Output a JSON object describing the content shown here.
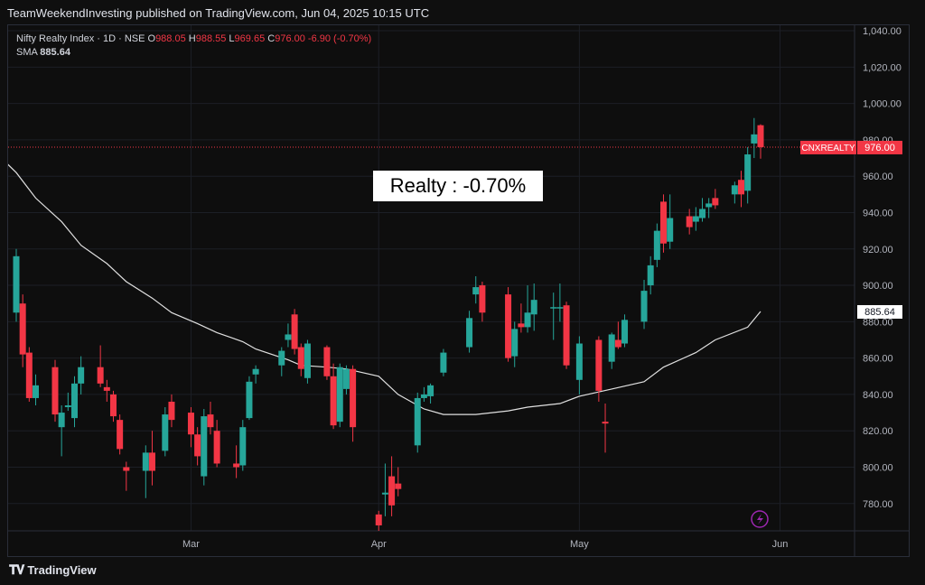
{
  "header": {
    "published": "TeamWeekendInvesting published on TradingView.com, Jun 04, 2025 10:15 UTC"
  },
  "legend": {
    "symbol": "Nifty Realty Index · 1D · NSE",
    "o_label": "O",
    "o": "988.05",
    "h_label": "H",
    "h": "988.55",
    "l_label": "L",
    "l": "969.65",
    "c_label": "C",
    "c": "976.00",
    "change": "-6.90 (-0.70%)",
    "sma_label": "SMA",
    "sma": "885.64"
  },
  "annotation": "Realty : -0.70%",
  "price_tag": {
    "ticker": "CNXREALTY",
    "price": "976.00"
  },
  "sma_tag": "885.64",
  "footer": {
    "brand": "TradingView"
  },
  "colors": {
    "up": "#26a69a",
    "down": "#f23645",
    "sma": "#e0e0e0",
    "grid": "#1c1f26"
  },
  "chart_data": {
    "type": "candlestick",
    "y_ticks": [
      "780.00",
      "800.00",
      "820.00",
      "840.00",
      "860.00",
      "880.00",
      "900.00",
      "920.00",
      "940.00",
      "960.00",
      "980.00",
      "1,000.00",
      "1,020.00",
      "1,040.00"
    ],
    "ylim": [
      765,
      1043
    ],
    "x_ticks": [
      {
        "label": "Mar",
        "date": "2025-03-03"
      },
      {
        "label": "Apr",
        "date": "2025-04-01"
      },
      {
        "label": "May",
        "date": "2025-05-02"
      },
      {
        "label": "Jun",
        "date": "2025-06-02"
      }
    ],
    "candles": [
      {
        "date": "2025-02-04",
        "o": 885,
        "h": 920,
        "l": 880,
        "c": 916
      },
      {
        "date": "2025-02-05",
        "o": 890,
        "h": 895,
        "l": 855,
        "c": 862
      },
      {
        "date": "2025-02-06",
        "o": 863,
        "h": 866,
        "l": 836,
        "c": 838
      },
      {
        "date": "2025-02-07",
        "o": 838,
        "h": 851,
        "l": 834,
        "c": 845
      },
      {
        "date": "2025-02-10",
        "o": 855,
        "h": 859,
        "l": 825,
        "c": 829
      },
      {
        "date": "2025-02-11",
        "o": 822,
        "h": 834,
        "l": 806,
        "c": 830
      },
      {
        "date": "2025-02-12",
        "o": 833,
        "h": 841,
        "l": 831,
        "c": 834
      },
      {
        "date": "2025-02-13",
        "o": 827,
        "h": 850,
        "l": 822,
        "c": 846
      },
      {
        "date": "2025-02-14",
        "o": 846,
        "h": 861,
        "l": 840,
        "c": 855
      },
      {
        "date": "2025-02-17",
        "o": 855,
        "h": 867,
        "l": 844,
        "c": 846
      },
      {
        "date": "2025-02-18",
        "o": 844,
        "h": 848,
        "l": 836,
        "c": 842
      },
      {
        "date": "2025-02-19",
        "o": 840,
        "h": 842,
        "l": 825,
        "c": 828
      },
      {
        "date": "2025-02-20",
        "o": 826,
        "h": 829,
        "l": 807,
        "c": 810
      },
      {
        "date": "2025-02-21",
        "o": 800,
        "h": 803,
        "l": 787,
        "c": 798
      },
      {
        "date": "2025-02-24",
        "o": 798,
        "h": 812,
        "l": 783,
        "c": 808
      },
      {
        "date": "2025-02-25",
        "o": 808,
        "h": 820,
        "l": 790,
        "c": 798
      },
      {
        "date": "2025-02-27",
        "o": 809,
        "h": 833,
        "l": 806,
        "c": 829
      },
      {
        "date": "2025-02-28",
        "o": 836,
        "h": 840,
        "l": 822,
        "c": 826
      },
      {
        "date": "2025-03-03",
        "o": 830,
        "h": 833,
        "l": 811,
        "c": 818
      },
      {
        "date": "2025-03-04",
        "o": 818,
        "h": 822,
        "l": 801,
        "c": 806
      },
      {
        "date": "2025-03-05",
        "o": 795,
        "h": 832,
        "l": 790,
        "c": 828
      },
      {
        "date": "2025-03-06",
        "o": 829,
        "h": 836,
        "l": 818,
        "c": 822
      },
      {
        "date": "2025-03-07",
        "o": 820,
        "h": 826,
        "l": 800,
        "c": 802
      },
      {
        "date": "2025-03-10",
        "o": 802,
        "h": 812,
        "l": 794,
        "c": 800
      },
      {
        "date": "2025-03-11",
        "o": 801,
        "h": 826,
        "l": 798,
        "c": 822
      },
      {
        "date": "2025-03-12",
        "o": 827,
        "h": 850,
        "l": 826,
        "c": 847
      },
      {
        "date": "2025-03-13",
        "o": 851,
        "h": 856,
        "l": 846,
        "c": 854
      },
      {
        "date": "2025-03-17",
        "o": 856,
        "h": 866,
        "l": 850,
        "c": 864
      },
      {
        "date": "2025-03-18",
        "o": 870,
        "h": 879,
        "l": 866,
        "c": 873
      },
      {
        "date": "2025-03-19",
        "o": 884,
        "h": 887,
        "l": 862,
        "c": 865
      },
      {
        "date": "2025-03-20",
        "o": 866,
        "h": 868,
        "l": 850,
        "c": 854
      },
      {
        "date": "2025-03-21",
        "o": 849,
        "h": 870,
        "l": 846,
        "c": 868
      },
      {
        "date": "2025-03-24",
        "o": 866,
        "h": 867,
        "l": 848,
        "c": 850
      },
      {
        "date": "2025-03-25",
        "o": 850,
        "h": 857,
        "l": 821,
        "c": 823
      },
      {
        "date": "2025-03-26",
        "o": 825,
        "h": 857,
        "l": 822,
        "c": 855
      },
      {
        "date": "2025-03-27",
        "o": 843,
        "h": 856,
        "l": 840,
        "c": 854
      },
      {
        "date": "2025-03-28",
        "o": 854,
        "h": 856,
        "l": 814,
        "c": 822
      },
      {
        "date": "2025-04-01",
        "o": 774,
        "h": 776,
        "l": 765,
        "c": 768
      },
      {
        "date": "2025-04-02",
        "o": 785,
        "h": 802,
        "l": 773,
        "c": 786
      },
      {
        "date": "2025-04-03",
        "o": 795,
        "h": 806,
        "l": 773,
        "c": 779
      },
      {
        "date": "2025-04-04",
        "o": 791,
        "h": 800,
        "l": 784,
        "c": 788
      },
      {
        "date": "2025-04-07",
        "o": 812,
        "h": 841,
        "l": 808,
        "c": 838
      },
      {
        "date": "2025-04-08",
        "o": 838,
        "h": 844,
        "l": 836,
        "c": 840
      },
      {
        "date": "2025-04-09",
        "o": 839,
        "h": 846,
        "l": 835,
        "c": 845
      },
      {
        "date": "2025-04-11",
        "o": 852,
        "h": 865,
        "l": 850,
        "c": 863
      },
      {
        "date": "2025-04-15",
        "o": 866,
        "h": 886,
        "l": 863,
        "c": 882
      },
      {
        "date": "2025-04-16",
        "o": 895,
        "h": 905,
        "l": 890,
        "c": 899
      },
      {
        "date": "2025-04-17",
        "o": 900,
        "h": 902,
        "l": 880,
        "c": 885
      },
      {
        "date": "2025-04-21",
        "o": 895,
        "h": 899,
        "l": 858,
        "c": 860
      },
      {
        "date": "2025-04-22",
        "o": 861,
        "h": 880,
        "l": 855,
        "c": 876
      },
      {
        "date": "2025-04-23",
        "o": 879,
        "h": 890,
        "l": 874,
        "c": 877
      },
      {
        "date": "2025-04-24",
        "o": 877,
        "h": 900,
        "l": 874,
        "c": 885
      },
      {
        "date": "2025-04-25",
        "o": 884,
        "h": 901,
        "l": 875,
        "c": 892
      },
      {
        "date": "2025-04-28",
        "o": 888,
        "h": 896,
        "l": 870,
        "c": 888
      },
      {
        "date": "2025-04-29",
        "o": 888,
        "h": 901,
        "l": 880,
        "c": 888
      },
      {
        "date": "2025-04-30",
        "o": 889,
        "h": 891,
        "l": 854,
        "c": 856
      },
      {
        "date": "2025-05-02",
        "o": 848,
        "h": 872,
        "l": 840,
        "c": 868
      },
      {
        "date": "2025-05-05",
        "o": 870,
        "h": 872,
        "l": 836,
        "c": 842
      },
      {
        "date": "2025-05-06",
        "o": 825,
        "h": 835,
        "l": 808,
        "c": 824
      },
      {
        "date": "2025-05-07",
        "o": 858,
        "h": 874,
        "l": 854,
        "c": 873
      },
      {
        "date": "2025-05-08",
        "o": 870,
        "h": 880,
        "l": 865,
        "c": 866
      },
      {
        "date": "2025-05-09",
        "o": 868,
        "h": 884,
        "l": 866,
        "c": 881
      },
      {
        "date": "2025-05-12",
        "o": 880,
        "h": 903,
        "l": 876,
        "c": 897
      },
      {
        "date": "2025-05-13",
        "o": 900,
        "h": 916,
        "l": 895,
        "c": 911
      },
      {
        "date": "2025-05-14",
        "o": 914,
        "h": 934,
        "l": 910,
        "c": 930
      },
      {
        "date": "2025-05-15",
        "o": 946,
        "h": 950,
        "l": 918,
        "c": 923
      },
      {
        "date": "2025-05-16",
        "o": 924,
        "h": 950,
        "l": 920,
        "c": 937
      },
      {
        "date": "2025-05-19",
        "o": 938,
        "h": 942,
        "l": 928,
        "c": 932
      },
      {
        "date": "2025-05-20",
        "o": 935,
        "h": 943,
        "l": 930,
        "c": 938
      },
      {
        "date": "2025-05-21",
        "o": 937,
        "h": 948,
        "l": 935,
        "c": 942
      },
      {
        "date": "2025-05-22",
        "o": 943,
        "h": 948,
        "l": 937,
        "c": 945
      },
      {
        "date": "2025-05-23",
        "o": 948,
        "h": 953,
        "l": 942,
        "c": 944
      },
      {
        "date": "2025-05-26",
        "o": 950,
        "h": 957,
        "l": 945,
        "c": 955
      },
      {
        "date": "2025-05-27",
        "o": 958,
        "h": 963,
        "l": 943,
        "c": 950
      },
      {
        "date": "2025-05-28",
        "o": 952,
        "h": 976,
        "l": 945,
        "c": 972
      },
      {
        "date": "2025-05-29",
        "o": 978,
        "h": 992,
        "l": 970,
        "c": 983
      },
      {
        "date": "2025-05-30",
        "o": 988.05,
        "h": 988.55,
        "l": 969.65,
        "c": 976
      }
    ],
    "sma": [
      {
        "date": "2025-01-31",
        "v": 976
      },
      {
        "date": "2025-02-04",
        "v": 962
      },
      {
        "date": "2025-02-07",
        "v": 948
      },
      {
        "date": "2025-02-11",
        "v": 935
      },
      {
        "date": "2025-02-14",
        "v": 922
      },
      {
        "date": "2025-02-18",
        "v": 912
      },
      {
        "date": "2025-02-21",
        "v": 902
      },
      {
        "date": "2025-02-25",
        "v": 893
      },
      {
        "date": "2025-02-28",
        "v": 885
      },
      {
        "date": "2025-03-04",
        "v": 879
      },
      {
        "date": "2025-03-07",
        "v": 874
      },
      {
        "date": "2025-03-11",
        "v": 869
      },
      {
        "date": "2025-03-13",
        "v": 865
      },
      {
        "date": "2025-03-18",
        "v": 859
      },
      {
        "date": "2025-03-20",
        "v": 856
      },
      {
        "date": "2025-03-24",
        "v": 855
      },
      {
        "date": "2025-03-27",
        "v": 854
      },
      {
        "date": "2025-04-01",
        "v": 850
      },
      {
        "date": "2025-04-04",
        "v": 840
      },
      {
        "date": "2025-04-08",
        "v": 832
      },
      {
        "date": "2025-04-11",
        "v": 829
      },
      {
        "date": "2025-04-16",
        "v": 829
      },
      {
        "date": "2025-04-21",
        "v": 831
      },
      {
        "date": "2025-04-24",
        "v": 833
      },
      {
        "date": "2025-04-29",
        "v": 835
      },
      {
        "date": "2025-05-02",
        "v": 839
      },
      {
        "date": "2025-05-07",
        "v": 843
      },
      {
        "date": "2025-05-12",
        "v": 847
      },
      {
        "date": "2025-05-15",
        "v": 855
      },
      {
        "date": "2025-05-20",
        "v": 863
      },
      {
        "date": "2025-05-23",
        "v": 870
      },
      {
        "date": "2025-05-28",
        "v": 877
      },
      {
        "date": "2025-05-30",
        "v": 885.64
      }
    ]
  }
}
